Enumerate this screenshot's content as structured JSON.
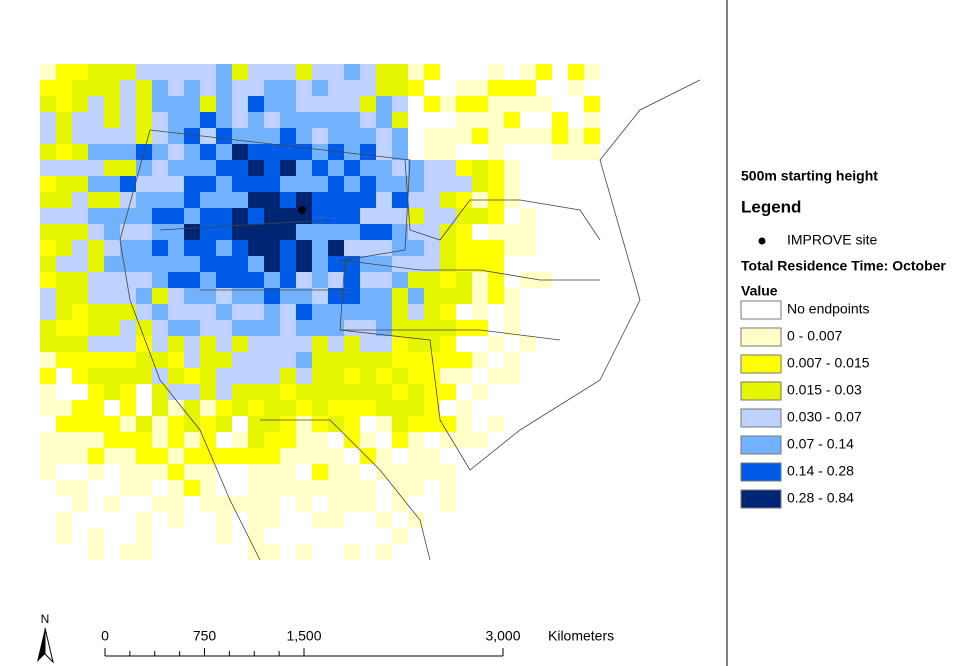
{
  "legend": {
    "subtitle": "500m starting height",
    "title": "Legend",
    "site": "IMPROVE site",
    "layer": "Total Residence Time: October",
    "field": "Value",
    "classes": [
      {
        "label": "No endpoints",
        "color": "#ffffff"
      },
      {
        "label": "0 - 0.007",
        "color": "#ffffc8"
      },
      {
        "label": "0.007 - 0.015",
        "color": "#ffff00"
      },
      {
        "label": "0.015 - 0.03",
        "color": "#e6f500"
      },
      {
        "label": "0.030 - 0.07",
        "color": "#bed2ff"
      },
      {
        "label": "0.07 - 0.14",
        "color": "#73b2ff"
      },
      {
        "label": "0.14 - 0.28",
        "color": "#005ce6"
      },
      {
        "label": "0.28 - 0.84",
        "color": "#002673"
      }
    ]
  },
  "scale": {
    "ticks": [
      {
        "value": 0,
        "label": "0"
      },
      {
        "value": 750,
        "label": "750"
      },
      {
        "value": 1500,
        "label": "1,500"
      },
      {
        "value": 3000,
        "label": "3,000"
      }
    ],
    "unit": "Kilometers"
  },
  "north": "N"
}
